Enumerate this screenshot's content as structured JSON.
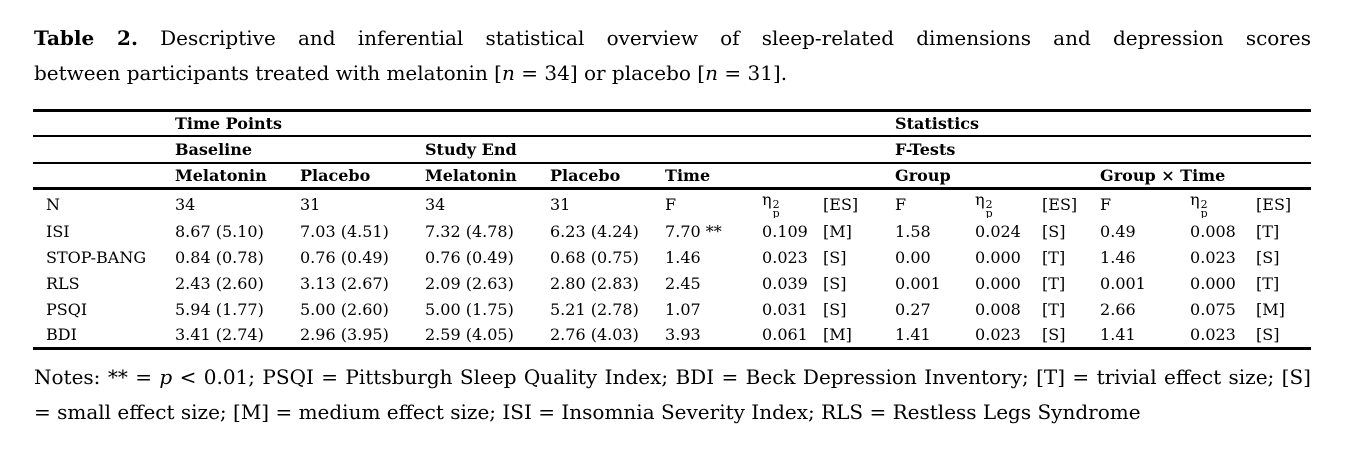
{
  "page": {
    "background": "#ffffff",
    "text_color": "#000000"
  },
  "title": {
    "label": "Table 2.",
    "line1_rest": " Descriptive and inferential statistical overview of sleep-related dimensions and depression scores",
    "line2": {
      "pre": "between participants treated with melatonin [",
      "n1": "n",
      "seg1": " = 34] or placebo [",
      "n2": "n",
      "seg2": " = 31]."
    }
  },
  "table": {
    "spanners": {
      "time_points": "Time Points",
      "statistics": "Statistics",
      "baseline": "Baseline",
      "study_end": "Study End",
      "f_tests": "F-Tests",
      "melatonin_1": "Melatonin",
      "placebo_1": "Placebo",
      "melatonin_2": "Melatonin",
      "placebo_2": "Placebo",
      "time": "Time",
      "group": "Group",
      "group_time": "Group × Time"
    },
    "eta": {
      "symbol": "η",
      "sup": "2",
      "sub": "p"
    },
    "rows": [
      {
        "label": "N",
        "cells": [
          "34",
          "31",
          "34",
          "31",
          "F",
          {
            "eta": true
          },
          "[ES]",
          "F",
          {
            "eta": true
          },
          "[ES]",
          "F",
          {
            "eta": true
          },
          "[ES]"
        ]
      },
      {
        "label": "ISI",
        "cells": [
          "8.67 (5.10)",
          "7.03 (4.51)",
          "7.32 (4.78)",
          "6.23 (4.24)",
          "7.70 **",
          "0.109",
          "[M]",
          "1.58",
          "0.024",
          "[S]",
          "0.49",
          "0.008",
          "[T]"
        ]
      },
      {
        "label": "STOP-BANG",
        "cells": [
          "0.84 (0.78)",
          "0.76 (0.49)",
          "0.76 (0.49)",
          "0.68 (0.75)",
          "1.46",
          "0.023",
          "[S]",
          "0.00",
          "0.000",
          "[T]",
          "1.46",
          "0.023",
          "[S]"
        ]
      },
      {
        "label": "RLS",
        "cells": [
          "2.43 (2.60)",
          "3.13 (2.67)",
          "2.09 (2.63)",
          "2.80 (2.83)",
          "2.45",
          "0.039",
          "[S]",
          "0.001",
          "0.000",
          "[T]",
          "0.001",
          "0.000",
          "[T]"
        ]
      },
      {
        "label": "PSQI",
        "cells": [
          "5.94 (1.77)",
          "5.00 (2.60)",
          "5.00 (1.75)",
          "5.21 (2.78)",
          "1.07",
          "0.031",
          "[S]",
          "0.27",
          "0.008",
          "[T]",
          "2.66",
          "0.075",
          "[M]"
        ]
      },
      {
        "label": "BDI",
        "cells": [
          "3.41 (2.74)",
          "2.96 (3.95)",
          "2.59 (4.05)",
          "2.76 (4.03)",
          "3.93",
          "0.061",
          "[M]",
          "1.41",
          "0.023",
          "[S]",
          "1.41",
          "0.023",
          "[S]"
        ]
      }
    ]
  },
  "notes": {
    "line1": {
      "pre": "Notes: ** = ",
      "p": "p",
      "post": " < 0.01; PSQI = Pittsburgh Sleep Quality Index; BDI = Beck Depression Inventory; [T] = trivial effect size; [S]"
    },
    "line2": "= small effect size; [M] = medium effect size; ISI = Insomnia Severity Index; RLS = Restless Legs Syndrome"
  }
}
